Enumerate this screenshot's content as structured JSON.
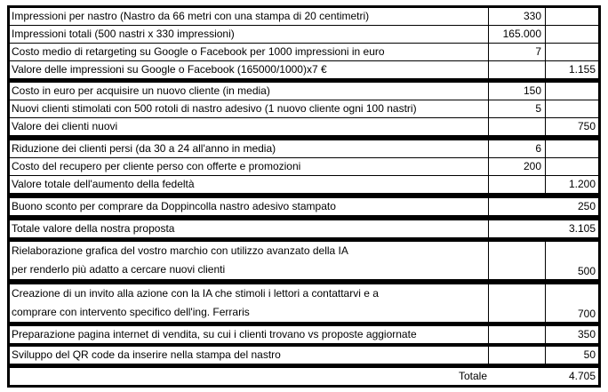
{
  "blocks": [
    {
      "rows": [
        {
          "label": [
            "Impressioni per nastro (Nastro da 66 metri con una stampa di 20 centimetri)"
          ],
          "c1": "330",
          "c2": ""
        },
        {
          "label": [
            "Impressioni totali (500 nastri x 330 impressioni)"
          ],
          "c1": "165.000",
          "c2": ""
        },
        {
          "label": [
            "Costo medio di retargeting su Google o Facebook per 1000 impressioni in euro"
          ],
          "c1": "7",
          "c2": ""
        },
        {
          "label": [
            "Valore delle impressioni su Google o Facebook (165000/1000)x7 €"
          ],
          "c1": "",
          "c2": "1.155"
        }
      ]
    },
    {
      "rows": [
        {
          "label": [
            "Costo in euro per acquisire un nuovo cliente (in media)"
          ],
          "c1": "150",
          "c2": ""
        },
        {
          "label": [
            "Nuovi clienti stimolati con 500 rotoli di nastro adesivo (1 nuovo cliente ogni 100 nastri)"
          ],
          "c1": "5",
          "c2": ""
        },
        {
          "label": [
            "Valore dei clienti nuovi"
          ],
          "c1": "",
          "c2": "750"
        }
      ]
    },
    {
      "rows": [
        {
          "label": [
            "Riduzione dei clienti persi (da 30 a 24 all'anno in media)"
          ],
          "c1": "6",
          "c2": ""
        },
        {
          "label": [
            "Costo del recupero per cliente perso con offerte e promozioni"
          ],
          "c1": "200",
          "c2": ""
        },
        {
          "label": [
            "Valore totale dell'aumento della fedeltà"
          ],
          "c1": "",
          "c2": "1.200"
        }
      ]
    },
    {
      "rows": [
        {
          "label": [
            "Buono sconto per comprare da Doppincolla nastro adesivo stampato"
          ],
          "value": "250"
        }
      ]
    },
    {
      "rows": [
        {
          "label": [
            "Totale valore della nostra proposta"
          ],
          "value": "3.105"
        }
      ]
    },
    {
      "rows": [
        {
          "label": [
            "Rielaborazione grafica del vostro marchio con utilizzo avanzato della IA",
            "per renderlo più adatto a cercare nuovi clienti"
          ],
          "c1": "",
          "c2": "500"
        }
      ]
    },
    {
      "rows": [
        {
          "label": [
            "Creazione di un invito alla azione con la IA  che stimoli i lettori a contattarvi e a",
            "comprare con intervento specifico dell'ing. Ferraris"
          ],
          "c1": "",
          "c2": "700"
        }
      ]
    },
    {
      "rows": [
        {
          "label": [
            "Preparazione pagina internet di vendita, su cui i clienti trovano vs proposte aggiornate"
          ],
          "c1": "",
          "c2": "350"
        }
      ]
    },
    {
      "rows": [
        {
          "label": [
            "Sviluppo del QR code da inserire nella stampa del nastro"
          ],
          "c1": "",
          "c2": "50"
        }
      ]
    },
    {
      "rows": [
        {
          "total_label": "Totale",
          "value": "4.705"
        }
      ]
    }
  ]
}
